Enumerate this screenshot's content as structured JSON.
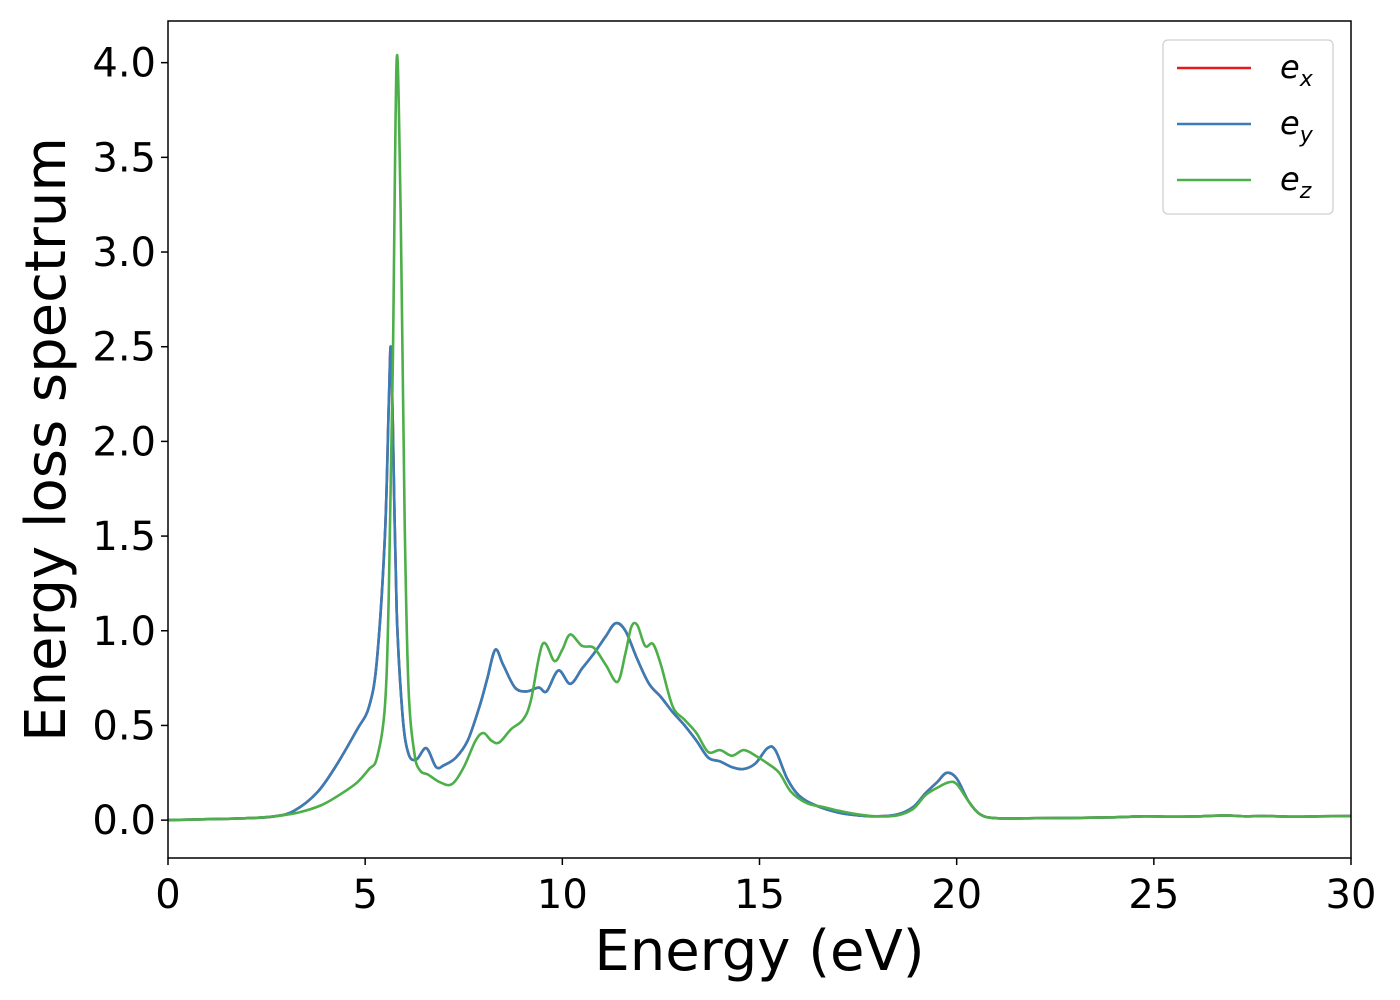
{
  "chart_data": {
    "type": "line",
    "xlabel": "Energy (eV)",
    "ylabel": "Energy loss spectrum",
    "xlim": [
      0,
      30
    ],
    "ylim": [
      -0.2,
      4.22
    ],
    "xticks": [
      "0",
      "5",
      "10",
      "15",
      "20",
      "25",
      "30"
    ],
    "yticks": [
      "0.0",
      "0.5",
      "1.0",
      "1.5",
      "2.0",
      "2.5",
      "3.0",
      "3.5",
      "4.0"
    ],
    "grid": false,
    "legend_position": "top-right",
    "series": [
      {
        "name": "e_x",
        "label_base": "e",
        "label_sub": "x",
        "color": "#e41a1c",
        "x": [
          0,
          1,
          2,
          2.7,
          3.2,
          3.8,
          4.3,
          4.8,
          5.1,
          5.3,
          5.5,
          5.6,
          5.65,
          5.7,
          5.8,
          5.95,
          6.1,
          6.3,
          6.55,
          6.8,
          7.0,
          7.3,
          7.6,
          7.9,
          8.1,
          8.3,
          8.5,
          8.8,
          9.1,
          9.4,
          9.6,
          9.9,
          10.2,
          10.5,
          10.8,
          11.1,
          11.35,
          11.6,
          11.9,
          12.2,
          12.5,
          12.8,
          13.1,
          13.4,
          13.7,
          14.0,
          14.3,
          14.6,
          14.9,
          15.2,
          15.4,
          15.7,
          16.0,
          16.4,
          17.0,
          17.5,
          18.0,
          18.5,
          18.9,
          19.2,
          19.5,
          19.75,
          20.0,
          20.3,
          20.6,
          21.0,
          22.0,
          23.0,
          24.0,
          24.8,
          25.5,
          26.2,
          26.8,
          27.3,
          27.8,
          28.5,
          29.2,
          30.0
        ],
        "y": [
          0.0,
          0.005,
          0.01,
          0.02,
          0.05,
          0.15,
          0.3,
          0.48,
          0.6,
          0.85,
          1.5,
          2.2,
          2.5,
          2.1,
          1.1,
          0.55,
          0.35,
          0.32,
          0.38,
          0.28,
          0.29,
          0.33,
          0.42,
          0.6,
          0.75,
          0.9,
          0.82,
          0.7,
          0.68,
          0.7,
          0.68,
          0.79,
          0.72,
          0.8,
          0.88,
          0.97,
          1.04,
          1.0,
          0.85,
          0.72,
          0.65,
          0.57,
          0.5,
          0.42,
          0.33,
          0.31,
          0.28,
          0.27,
          0.3,
          0.38,
          0.37,
          0.22,
          0.13,
          0.08,
          0.04,
          0.025,
          0.02,
          0.03,
          0.07,
          0.14,
          0.2,
          0.25,
          0.22,
          0.1,
          0.03,
          0.01,
          0.01,
          0.012,
          0.015,
          0.02,
          0.018,
          0.02,
          0.025,
          0.02,
          0.022,
          0.018,
          0.02,
          0.022
        ]
      },
      {
        "name": "e_y",
        "label_base": "e",
        "label_sub": "y",
        "color": "#377eb8",
        "x": [
          0,
          1,
          2,
          2.7,
          3.2,
          3.8,
          4.3,
          4.8,
          5.1,
          5.3,
          5.5,
          5.6,
          5.65,
          5.7,
          5.8,
          5.95,
          6.1,
          6.3,
          6.55,
          6.8,
          7.0,
          7.3,
          7.6,
          7.9,
          8.1,
          8.3,
          8.5,
          8.8,
          9.1,
          9.4,
          9.6,
          9.9,
          10.2,
          10.5,
          10.8,
          11.1,
          11.35,
          11.6,
          11.9,
          12.2,
          12.5,
          12.8,
          13.1,
          13.4,
          13.7,
          14.0,
          14.3,
          14.6,
          14.9,
          15.2,
          15.4,
          15.7,
          16.0,
          16.4,
          17.0,
          17.5,
          18.0,
          18.5,
          18.9,
          19.2,
          19.5,
          19.75,
          20.0,
          20.3,
          20.6,
          21.0,
          22.0,
          23.0,
          24.0,
          24.8,
          25.5,
          26.2,
          26.8,
          27.3,
          27.8,
          28.5,
          29.2,
          30.0
        ],
        "y": [
          0.0,
          0.005,
          0.01,
          0.02,
          0.05,
          0.15,
          0.3,
          0.48,
          0.6,
          0.85,
          1.5,
          2.2,
          2.5,
          2.1,
          1.1,
          0.55,
          0.35,
          0.32,
          0.38,
          0.28,
          0.29,
          0.33,
          0.42,
          0.6,
          0.75,
          0.9,
          0.82,
          0.7,
          0.68,
          0.7,
          0.68,
          0.79,
          0.72,
          0.8,
          0.88,
          0.97,
          1.04,
          1.0,
          0.85,
          0.72,
          0.65,
          0.57,
          0.5,
          0.42,
          0.33,
          0.31,
          0.28,
          0.27,
          0.3,
          0.38,
          0.37,
          0.22,
          0.13,
          0.08,
          0.04,
          0.025,
          0.02,
          0.03,
          0.07,
          0.14,
          0.2,
          0.25,
          0.22,
          0.1,
          0.03,
          0.01,
          0.01,
          0.012,
          0.015,
          0.02,
          0.018,
          0.02,
          0.025,
          0.02,
          0.022,
          0.018,
          0.02,
          0.022
        ]
      },
      {
        "name": "e_z",
        "label_base": "e",
        "label_sub": "z",
        "color": "#4daf4a",
        "x": [
          0,
          1,
          2,
          2.7,
          3.3,
          3.9,
          4.4,
          4.8,
          5.1,
          5.3,
          5.5,
          5.6,
          5.7,
          5.8,
          5.9,
          6.0,
          6.1,
          6.25,
          6.4,
          6.6,
          6.9,
          7.2,
          7.5,
          7.8,
          8.0,
          8.2,
          8.4,
          8.7,
          9.0,
          9.2,
          9.5,
          9.8,
          10.0,
          10.2,
          10.5,
          10.8,
          11.1,
          11.4,
          11.6,
          11.75,
          11.9,
          12.1,
          12.3,
          12.5,
          12.8,
          13.1,
          13.4,
          13.7,
          14.0,
          14.3,
          14.6,
          14.9,
          15.2,
          15.5,
          15.8,
          16.2,
          16.6,
          17.0,
          17.5,
          18.0,
          18.5,
          18.9,
          19.2,
          19.5,
          19.8,
          20.0,
          20.3,
          20.6,
          21.0,
          22.0,
          23.0,
          24.0,
          24.8,
          25.5,
          26.2,
          26.8,
          27.3,
          27.8,
          28.5,
          29.2,
          30.0
        ],
        "y": [
          0.0,
          0.005,
          0.01,
          0.02,
          0.04,
          0.08,
          0.14,
          0.2,
          0.27,
          0.33,
          0.6,
          1.2,
          2.4,
          4.02,
          3.2,
          1.6,
          0.7,
          0.35,
          0.26,
          0.24,
          0.2,
          0.19,
          0.28,
          0.42,
          0.46,
          0.42,
          0.41,
          0.48,
          0.53,
          0.63,
          0.93,
          0.84,
          0.9,
          0.98,
          0.92,
          0.91,
          0.82,
          0.73,
          0.88,
          1.02,
          1.03,
          0.92,
          0.93,
          0.82,
          0.6,
          0.53,
          0.46,
          0.36,
          0.37,
          0.34,
          0.37,
          0.34,
          0.3,
          0.25,
          0.15,
          0.09,
          0.07,
          0.05,
          0.03,
          0.02,
          0.025,
          0.06,
          0.13,
          0.17,
          0.2,
          0.19,
          0.1,
          0.03,
          0.01,
          0.01,
          0.012,
          0.015,
          0.02,
          0.018,
          0.02,
          0.025,
          0.02,
          0.022,
          0.018,
          0.02,
          0.022
        ]
      }
    ]
  }
}
